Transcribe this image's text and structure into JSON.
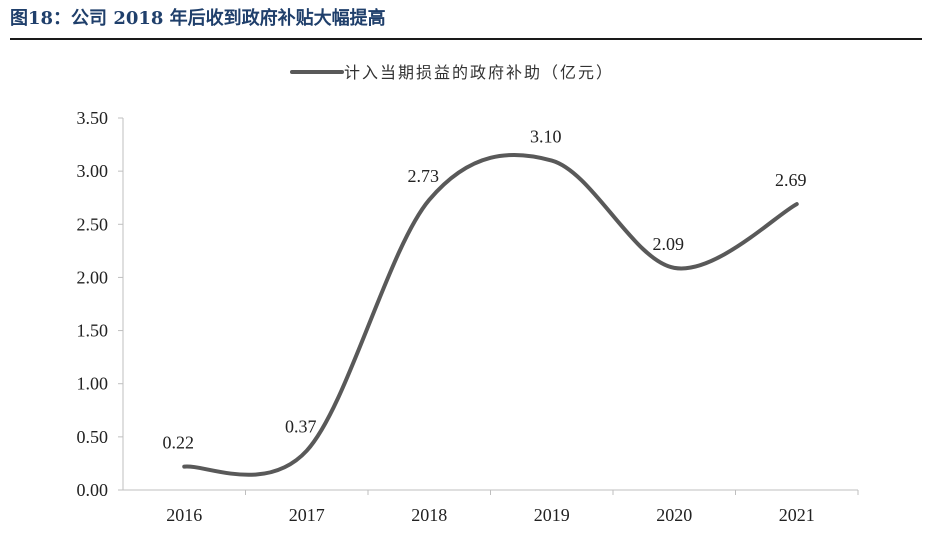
{
  "figure": {
    "title": "图18：公司 2018 年后收到政府补贴大幅提高"
  },
  "chart_data": {
    "type": "line",
    "title": "",
    "xlabel": "",
    "ylabel": "",
    "categories": [
      "2016",
      "2017",
      "2018",
      "2019",
      "2020",
      "2021"
    ],
    "series": [
      {
        "name": "计入当期损益的政府补助（亿元）",
        "values": [
          0.22,
          0.37,
          2.73,
          3.1,
          2.09,
          2.69
        ],
        "data_labels": [
          "0.22",
          "0.37",
          "2.73",
          "3.10",
          "2.09",
          "2.69"
        ],
        "color": "#595959",
        "smooth": true
      }
    ],
    "ylim": [
      0,
      3.5
    ],
    "yticks": [
      "0.00",
      "0.50",
      "1.00",
      "1.50",
      "2.00",
      "2.50",
      "3.00",
      "3.50"
    ],
    "grid": false,
    "legend": "top-center"
  }
}
